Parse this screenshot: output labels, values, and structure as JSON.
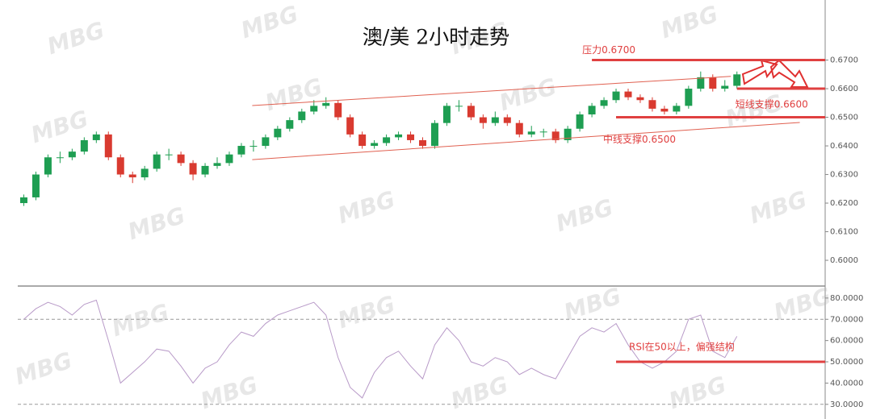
{
  "watermark": "MBG",
  "chart_data": [
    {
      "type": "candlestick",
      "title": "澳/美 2小时走势",
      "up_color": "#1e9e52",
      "down_color": "#d93a30",
      "open": [
        0.62,
        0.622,
        0.63,
        0.636,
        0.636,
        0.638,
        0.642,
        0.644,
        0.636,
        0.63,
        0.629,
        0.632,
        0.637,
        0.637,
        0.634,
        0.63,
        0.633,
        0.634,
        0.637,
        0.64,
        0.64,
        0.643,
        0.646,
        0.649,
        0.652,
        0.654,
        0.655,
        0.65,
        0.644,
        0.64,
        0.641,
        0.643,
        0.644,
        0.642,
        0.64,
        0.648,
        0.654,
        0.654,
        0.65,
        0.648,
        0.65,
        0.648,
        0.644,
        0.645,
        0.645,
        0.642,
        0.646,
        0.651,
        0.654,
        0.656,
        0.659,
        0.657,
        0.656,
        0.653,
        0.652,
        0.654,
        0.66,
        0.664,
        0.66,
        0.661
      ],
      "high": [
        0.623,
        0.631,
        0.637,
        0.638,
        0.639,
        0.643,
        0.645,
        0.645,
        0.637,
        0.631,
        0.633,
        0.638,
        0.639,
        0.638,
        0.635,
        0.634,
        0.636,
        0.638,
        0.641,
        0.642,
        0.644,
        0.647,
        0.65,
        0.653,
        0.656,
        0.657,
        0.656,
        0.651,
        0.645,
        0.642,
        0.644,
        0.645,
        0.645,
        0.643,
        0.649,
        0.655,
        0.656,
        0.655,
        0.651,
        0.652,
        0.651,
        0.649,
        0.647,
        0.646,
        0.646,
        0.647,
        0.652,
        0.655,
        0.657,
        0.66,
        0.66,
        0.658,
        0.657,
        0.654,
        0.655,
        0.661,
        0.666,
        0.665,
        0.663,
        0.666
      ],
      "low": [
        0.619,
        0.621,
        0.629,
        0.634,
        0.635,
        0.637,
        0.641,
        0.635,
        0.629,
        0.627,
        0.628,
        0.631,
        0.635,
        0.633,
        0.628,
        0.629,
        0.632,
        0.633,
        0.636,
        0.638,
        0.639,
        0.642,
        0.645,
        0.648,
        0.651,
        0.653,
        0.649,
        0.643,
        0.639,
        0.639,
        0.64,
        0.642,
        0.641,
        0.639,
        0.639,
        0.647,
        0.652,
        0.649,
        0.646,
        0.647,
        0.647,
        0.643,
        0.643,
        0.643,
        0.641,
        0.641,
        0.645,
        0.65,
        0.653,
        0.655,
        0.656,
        0.655,
        0.652,
        0.651,
        0.651,
        0.653,
        0.659,
        0.659,
        0.659,
        0.66
      ],
      "close": [
        0.622,
        0.63,
        0.636,
        0.636,
        0.638,
        0.642,
        0.644,
        0.636,
        0.63,
        0.629,
        0.632,
        0.637,
        0.637,
        0.634,
        0.63,
        0.633,
        0.634,
        0.637,
        0.64,
        0.64,
        0.643,
        0.646,
        0.649,
        0.652,
        0.654,
        0.655,
        0.65,
        0.644,
        0.64,
        0.641,
        0.643,
        0.644,
        0.642,
        0.64,
        0.648,
        0.654,
        0.654,
        0.65,
        0.648,
        0.65,
        0.648,
        0.644,
        0.645,
        0.645,
        0.642,
        0.646,
        0.651,
        0.654,
        0.656,
        0.659,
        0.657,
        0.656,
        0.653,
        0.652,
        0.654,
        0.66,
        0.664,
        0.66,
        0.661,
        0.665
      ],
      "xlim": [
        -0.5,
        66.5
      ],
      "ylim": [
        0.591,
        0.691
      ],
      "yticks": [
        {
          "value": 0.6,
          "label": "0.6000"
        },
        {
          "value": 0.61,
          "label": "0.6100"
        },
        {
          "value": 0.62,
          "label": "0.6200"
        },
        {
          "value": 0.63,
          "label": "0.6300"
        },
        {
          "value": 0.64,
          "label": "0.6400"
        },
        {
          "value": 0.65,
          "label": "0.6500"
        },
        {
          "value": 0.66,
          "label": "0.6600"
        },
        {
          "value": 0.67,
          "label": "0.6700"
        }
      ],
      "levels": [
        {
          "value": 0.67,
          "label": "压力0.6700",
          "x_start": 47
        },
        {
          "value": 0.66,
          "label": "短线支撑0.6600",
          "x_start": 59
        },
        {
          "value": 0.65,
          "label": "中线支撑0.6500",
          "x_start": 49
        }
      ],
      "level_color": "#e04040",
      "trendlines": [
        {
          "x": [
            18.9,
            58.5
          ],
          "y": [
            0.6541,
            0.6643
          ]
        },
        {
          "x": [
            18.9,
            64.2
          ],
          "y": [
            0.6352,
            0.6482
          ]
        }
      ],
      "trend_color": "#e06050"
    },
    {
      "type": "line",
      "color": "#b89ac8",
      "values": [
        70,
        75,
        78,
        76,
        72,
        77,
        79,
        60,
        40,
        45,
        50,
        56,
        55,
        48,
        40,
        47,
        50,
        58,
        64,
        62,
        68,
        72,
        74,
        76,
        78,
        72,
        52,
        38,
        33,
        45,
        52,
        55,
        48,
        42,
        58,
        66,
        60,
        50,
        48,
        52,
        50,
        44,
        47,
        44,
        42,
        52,
        62,
        66,
        64,
        68,
        58,
        50,
        47,
        50,
        55,
        70,
        72,
        55,
        52,
        62
      ],
      "xlim": [
        -0.5,
        66.5
      ],
      "ylim": [
        25,
        84.5
      ],
      "yticks": [
        {
          "value": 30,
          "label": "30.0000"
        },
        {
          "value": 40,
          "label": "40.0000"
        },
        {
          "value": 50,
          "label": "50.0000"
        },
        {
          "value": 60,
          "label": "60.0000"
        },
        {
          "value": 70,
          "label": "70.0000"
        },
        {
          "value": 80,
          "label": "80.0000"
        }
      ],
      "dashed_lines": [
        70,
        30
      ],
      "levels": [
        {
          "value": 50,
          "label": "RSI在50以上，偏强结构",
          "x_start": 49
        }
      ],
      "level_color": "#e04040"
    }
  ]
}
